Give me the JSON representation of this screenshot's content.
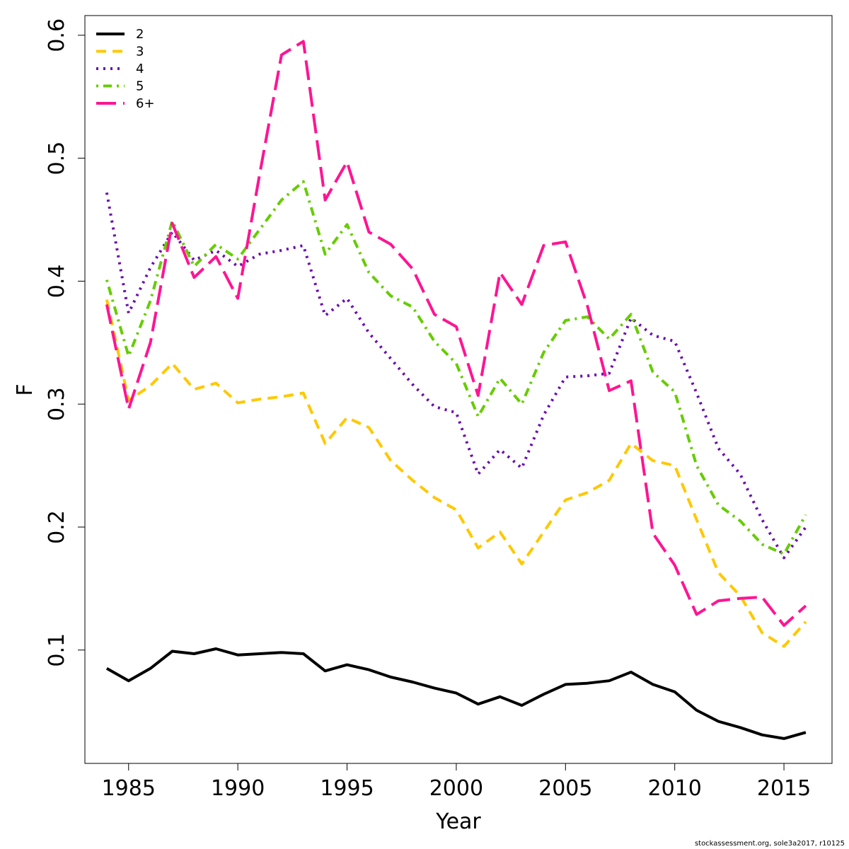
{
  "chart_data": {
    "type": "line",
    "xlabel": "Year",
    "ylabel": "F",
    "xlim": [
      1983.0,
      2017.2
    ],
    "ylim": [
      0.0078,
      0.616
    ],
    "xticks": [
      1985,
      1990,
      1995,
      2000,
      2005,
      2010,
      2015
    ],
    "xtick_labels": [
      "1985",
      "1990",
      "1995",
      "2000",
      "2005",
      "2010",
      "2015"
    ],
    "yticks": [
      0.1,
      0.2,
      0.3,
      0.4,
      0.5,
      0.6
    ],
    "ytick_labels": [
      "0.1",
      "0.2",
      "0.3",
      "0.4",
      "0.5",
      "0.6"
    ],
    "grid": false,
    "legend_position": "top-left",
    "x": [
      1984,
      1985,
      1986,
      1987,
      1988,
      1989,
      1990,
      1991,
      1992,
      1993,
      1994,
      1995,
      1996,
      1997,
      1998,
      1999,
      2000,
      2001,
      2002,
      2003,
      2004,
      2005,
      2006,
      2007,
      2008,
      2009,
      2010,
      2011,
      2012,
      2013,
      2014,
      2015,
      2016
    ],
    "series": [
      {
        "name": "2",
        "color": "#000000",
        "style": "solid",
        "values": [
          0.085,
          0.075,
          0.085,
          0.099,
          0.097,
          0.101,
          0.096,
          0.097,
          0.098,
          0.097,
          0.083,
          0.088,
          0.084,
          0.078,
          0.074,
          0.069,
          0.065,
          0.056,
          0.062,
          0.055,
          0.064,
          0.072,
          0.073,
          0.075,
          0.082,
          0.072,
          0.066,
          0.051,
          0.042,
          0.037,
          0.031,
          0.028,
          0.033
        ]
      },
      {
        "name": "3",
        "color": "#FFC800",
        "style": "dashed",
        "values": [
          0.385,
          0.303,
          0.315,
          0.333,
          0.312,
          0.317,
          0.301,
          0.304,
          0.306,
          0.309,
          0.268,
          0.289,
          0.281,
          0.254,
          0.238,
          0.224,
          0.214,
          0.183,
          0.196,
          0.17,
          0.196,
          0.222,
          0.228,
          0.238,
          0.268,
          0.254,
          0.25,
          0.206,
          0.163,
          0.144,
          0.114,
          0.103,
          0.123
        ]
      },
      {
        "name": "4",
        "color": "#6A0DAD",
        "style": "dotted",
        "values": [
          0.472,
          0.374,
          0.411,
          0.44,
          0.417,
          0.425,
          0.412,
          0.422,
          0.425,
          0.429,
          0.372,
          0.386,
          0.358,
          0.337,
          0.316,
          0.298,
          0.293,
          0.243,
          0.263,
          0.248,
          0.291,
          0.322,
          0.323,
          0.325,
          0.37,
          0.356,
          0.351,
          0.309,
          0.264,
          0.243,
          0.206,
          0.175,
          0.2
        ]
      },
      {
        "name": "5",
        "color": "#66CC00",
        "style": "dashdot",
        "values": [
          0.401,
          0.339,
          0.384,
          0.449,
          0.412,
          0.43,
          0.418,
          0.442,
          0.466,
          0.481,
          0.422,
          0.446,
          0.407,
          0.388,
          0.379,
          0.351,
          0.333,
          0.29,
          0.321,
          0.3,
          0.342,
          0.368,
          0.371,
          0.353,
          0.373,
          0.326,
          0.31,
          0.25,
          0.218,
          0.205,
          0.186,
          0.178,
          0.21
        ]
      },
      {
        "name": "6+",
        "color": "#FF1493",
        "style": "longdash",
        "values": [
          0.381,
          0.296,
          0.35,
          0.447,
          0.403,
          0.42,
          0.386,
          0.487,
          0.584,
          0.595,
          0.466,
          0.497,
          0.44,
          0.43,
          0.41,
          0.373,
          0.363,
          0.307,
          0.407,
          0.381,
          0.429,
          0.432,
          0.38,
          0.311,
          0.319,
          0.195,
          0.169,
          0.129,
          0.14,
          0.142,
          0.143,
          0.12,
          0.136
        ]
      }
    ]
  },
  "footer": "stockassessment.org, sole3a2017, r10125"
}
